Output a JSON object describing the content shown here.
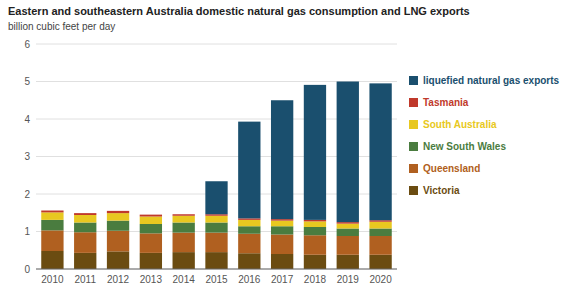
{
  "chart_data": {
    "type": "bar",
    "stacked": true,
    "title": "Eastern and southeastern Australia domestic natural gas consumption and LNG exports",
    "subtitle": "billion cubic feet per day",
    "categories": [
      "2010",
      "2011",
      "2012",
      "2013",
      "2014",
      "2015",
      "2016",
      "2017",
      "2018",
      "2019",
      "2020"
    ],
    "series": [
      {
        "name": "Victoria",
        "color": "#6b4c11",
        "values": [
          0.48,
          0.43,
          0.47,
          0.43,
          0.45,
          0.45,
          0.42,
          0.4,
          0.38,
          0.38,
          0.38
        ]
      },
      {
        "name": "Queensland",
        "color": "#b06020",
        "values": [
          0.55,
          0.55,
          0.55,
          0.52,
          0.52,
          0.52,
          0.52,
          0.52,
          0.52,
          0.5,
          0.5
        ]
      },
      {
        "name": "New South Wales",
        "color": "#4a7c3f",
        "values": [
          0.28,
          0.26,
          0.27,
          0.25,
          0.27,
          0.27,
          0.2,
          0.22,
          0.22,
          0.2,
          0.2
        ]
      },
      {
        "name": "South Australia",
        "color": "#e8c820",
        "values": [
          0.2,
          0.2,
          0.2,
          0.2,
          0.18,
          0.18,
          0.17,
          0.15,
          0.15,
          0.13,
          0.18
        ]
      },
      {
        "name": "Tasmania",
        "color": "#c0392b",
        "values": [
          0.05,
          0.05,
          0.06,
          0.05,
          0.04,
          0.04,
          0.04,
          0.04,
          0.04,
          0.04,
          0.04
        ]
      },
      {
        "name": "liquefied natural gas exports",
        "color": "#1a4f6e",
        "values": [
          0.0,
          0.0,
          0.0,
          0.0,
          0.0,
          0.88,
          2.58,
          3.17,
          3.6,
          3.75,
          3.65
        ]
      }
    ],
    "ylim": [
      0,
      6
    ],
    "yticks": [
      0,
      1,
      2,
      3,
      4,
      5,
      6
    ],
    "grid": true,
    "legend": "right"
  }
}
